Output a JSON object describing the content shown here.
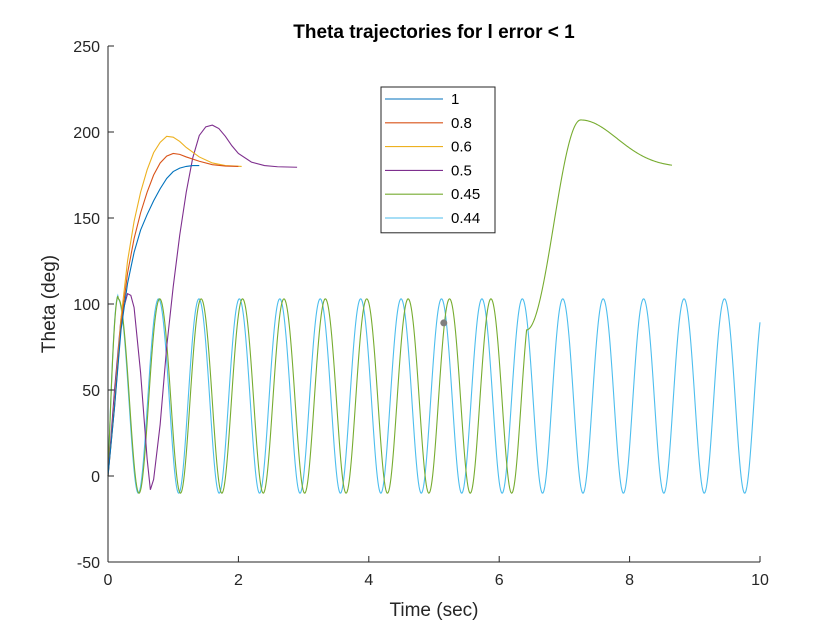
{
  "chart_data": {
    "type": "line",
    "title": "Theta trajectories for l error < 1",
    "xlabel": "Time (sec)",
    "ylabel": "Theta (deg)",
    "xlim": [
      0,
      10
    ],
    "ylim": [
      -50,
      250
    ],
    "xticks": [
      "0",
      "2",
      "4",
      "6",
      "8",
      "10"
    ],
    "yticks": [
      "-50",
      "0",
      "50",
      "100",
      "150",
      "200",
      "250"
    ],
    "grid": false,
    "legend_position": "top-center",
    "series": [
      {
        "name": "1",
        "color": "#0072BD",
        "x": [
          0,
          0.1,
          0.2,
          0.3,
          0.4,
          0.5,
          0.6,
          0.7,
          0.8,
          0.9,
          1.0,
          1.1,
          1.2,
          1.3,
          1.4
        ],
        "y": [
          0,
          40,
          85,
          112,
          130,
          143,
          152,
          160,
          167,
          173,
          177,
          179,
          180,
          180.5,
          180.5
        ]
      },
      {
        "name": "0.8",
        "color": "#D95319",
        "x": [
          0,
          0.1,
          0.2,
          0.3,
          0.4,
          0.5,
          0.6,
          0.7,
          0.8,
          0.9,
          1.0,
          1.1,
          1.2,
          1.4,
          1.6,
          1.8,
          2.0
        ],
        "y": [
          0,
          40,
          88,
          118,
          138,
          153,
          165,
          175,
          182,
          186,
          187.5,
          187,
          185.5,
          183,
          181,
          180.2,
          180
        ]
      },
      {
        "name": "0.6",
        "color": "#EDB120",
        "x": [
          0,
          0.1,
          0.2,
          0.3,
          0.4,
          0.5,
          0.6,
          0.7,
          0.8,
          0.9,
          1.0,
          1.1,
          1.2,
          1.4,
          1.6,
          1.8,
          2.05
        ],
        "y": [
          0,
          42,
          92,
          125,
          148,
          165,
          178,
          188,
          194,
          197.5,
          197,
          194.5,
          191,
          185.5,
          182,
          180.5,
          180
        ]
      },
      {
        "name": "0.5",
        "color": "#7E2F8E",
        "x": [
          0,
          0.1,
          0.2,
          0.3,
          0.35,
          0.4,
          0.5,
          0.6,
          0.65,
          0.7,
          0.8,
          0.9,
          1.0,
          1.1,
          1.2,
          1.3,
          1.4,
          1.5,
          1.6,
          1.7,
          1.8,
          1.9,
          2.0,
          2.2,
          2.4,
          2.6,
          2.9
        ],
        "y": [
          0,
          50,
          92,
          106,
          105,
          98,
          60,
          10,
          -8,
          -2,
          30,
          75,
          110,
          140,
          165,
          185,
          198,
          203,
          204,
          202,
          197.5,
          192,
          187.5,
          182.5,
          180.5,
          179.8,
          179.5
        ]
      },
      {
        "name": "0.45",
        "color": "#77AC30",
        "t_end": 8.65,
        "period": 0.635,
        "lock_out": 6.42,
        "peak": 207,
        "peak_time": 7.25,
        "final": 179.5
      },
      {
        "name": "0.44",
        "color": "#4DBEEE",
        "t_end": 10,
        "period": 0.62
      }
    ],
    "annotations": [
      {
        "type": "point",
        "x": 5.15,
        "y": 89,
        "color": "#7F7F7F"
      }
    ]
  }
}
